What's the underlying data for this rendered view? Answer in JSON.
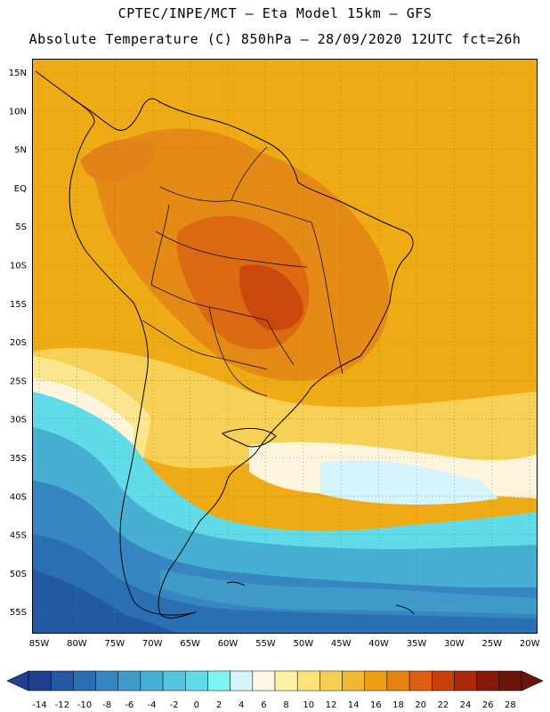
{
  "title": {
    "line1": "CPTEC/INPE/MCT –  Eta Model 15km – GFS",
    "line2": "Absolute Temperature (C) 850hPa – 28/09/2020 12UTC fct=26h"
  },
  "map": {
    "lat_labels": [
      "15N",
      "10N",
      "5N",
      "EQ",
      "5S",
      "10S",
      "15S",
      "20S",
      "25S",
      "30S",
      "35S",
      "40S",
      "45S",
      "50S",
      "55S"
    ],
    "lon_labels": [
      "85W",
      "80W",
      "75W",
      "70W",
      "65W",
      "60W",
      "55W",
      "50W",
      "45W",
      "40W",
      "35W",
      "30W",
      "25W",
      "20W"
    ]
  },
  "colorbar": {
    "labels": [
      "-14",
      "-12",
      "-10",
      "-8",
      "-6",
      "-4",
      "-2",
      "0",
      "2",
      "4",
      "6",
      "8",
      "10",
      "12",
      "14",
      "16",
      "18",
      "20",
      "22",
      "24",
      "26",
      "28"
    ],
    "colors": [
      "#1f3f8f",
      "#2358a2",
      "#2b6fb3",
      "#3786c2",
      "#3f9cc8",
      "#47b0d2",
      "#56c6df",
      "#62dbe8",
      "#7ff2f2",
      "#d6f4fb",
      "#fff7e6",
      "#fff1a6",
      "#fde37a",
      "#f6cf57",
      "#f0b831",
      "#ec9f12",
      "#e78411",
      "#dd5f0d",
      "#c8400b",
      "#a82a08",
      "#85190a",
      "#6a1508"
    ]
  },
  "colors": {
    "ocean_north": "#efab15",
    "deep_cold": "#2d5aa5"
  }
}
